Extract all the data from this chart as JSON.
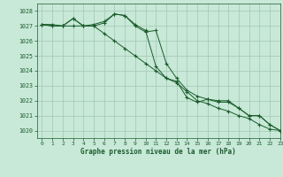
{
  "title": "Graphe pression niveau de la mer (hPa)",
  "background_color": "#c8e8d8",
  "grid_color": "#a0c8b0",
  "line_color": "#1a5c2a",
  "xlim": [
    -0.5,
    23
  ],
  "ylim": [
    1019.5,
    1028.5
  ],
  "yticks": [
    1020,
    1021,
    1022,
    1023,
    1024,
    1025,
    1026,
    1027,
    1028
  ],
  "xticks": [
    0,
    1,
    2,
    3,
    4,
    5,
    6,
    7,
    8,
    9,
    10,
    11,
    12,
    13,
    14,
    15,
    16,
    17,
    18,
    19,
    20,
    21,
    22,
    23
  ],
  "series1_x": [
    0,
    1,
    2,
    3,
    4,
    5,
    6,
    7,
    8,
    9,
    10,
    11,
    12,
    13,
    14,
    15,
    16,
    17,
    18,
    19,
    20,
    21,
    22,
    23
  ],
  "series1_y": [
    1027.1,
    1027.0,
    1027.0,
    1027.5,
    1027.0,
    1027.0,
    1027.2,
    1027.8,
    1027.7,
    1027.1,
    1026.7,
    1024.3,
    1023.5,
    1023.3,
    1022.2,
    1021.9,
    1022.1,
    1021.9,
    1021.9,
    1021.5,
    1021.0,
    1021.0,
    1020.4,
    1020.0
  ],
  "series2_x": [
    0,
    1,
    2,
    3,
    4,
    5,
    6,
    7,
    8,
    9,
    10,
    11,
    12,
    13,
    14,
    15,
    16,
    17,
    18,
    19,
    20,
    21,
    22,
    23
  ],
  "series2_y": [
    1027.1,
    1027.1,
    1027.0,
    1027.5,
    1027.0,
    1027.1,
    1027.3,
    1027.8,
    1027.7,
    1027.0,
    1026.6,
    1026.7,
    1024.5,
    1023.5,
    1022.7,
    1022.3,
    1022.1,
    1022.0,
    1022.0,
    1021.5,
    1021.0,
    1021.0,
    1020.4,
    1020.0
  ],
  "series3_x": [
    0,
    1,
    2,
    3,
    4,
    5,
    6,
    7,
    8,
    9,
    10,
    11,
    12,
    13,
    14,
    15,
    16,
    17,
    18,
    19,
    20,
    21,
    22,
    23
  ],
  "series3_y": [
    1027.1,
    1027.0,
    1027.0,
    1027.0,
    1027.0,
    1027.0,
    1026.5,
    1026.0,
    1025.5,
    1025.0,
    1024.5,
    1024.0,
    1023.5,
    1023.2,
    1022.6,
    1022.0,
    1021.8,
    1021.5,
    1021.3,
    1021.0,
    1020.8,
    1020.4,
    1020.1,
    1020.0
  ]
}
